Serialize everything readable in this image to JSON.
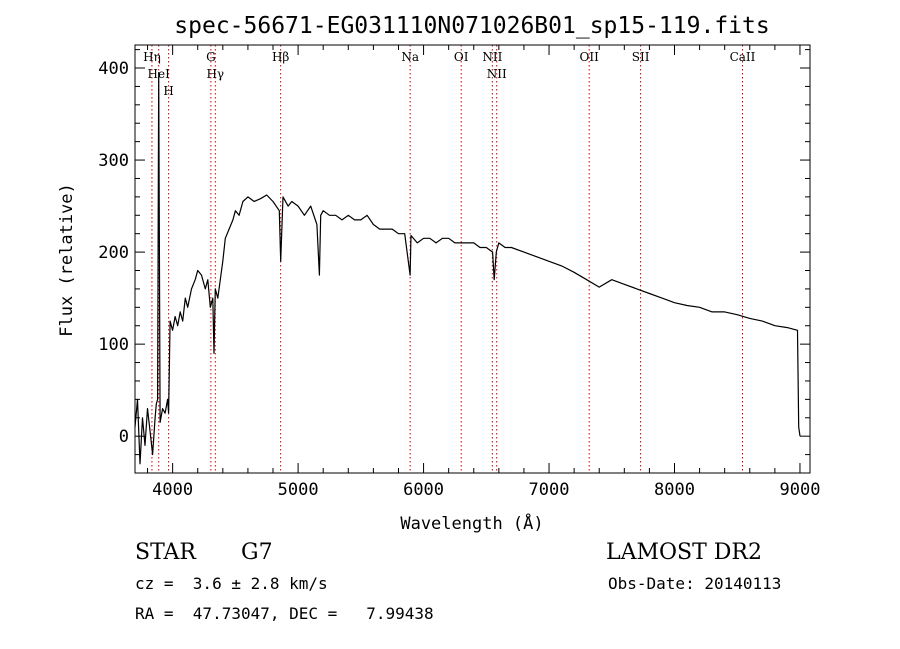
{
  "chart_data": {
    "type": "line",
    "title": "spec-56671-EG031110N071026B01_sp15-119.fits",
    "xlabel": "Wavelength (Å)",
    "ylabel": "Flux (relative)",
    "xlim": [
      3700,
      9080
    ],
    "ylim": [
      -40,
      425
    ],
    "x_ticks": [
      4000,
      5000,
      6000,
      7000,
      8000,
      9000
    ],
    "y_ticks": [
      0,
      100,
      200,
      300,
      400
    ],
    "grid": false,
    "series": [
      {
        "x": [
          3700,
          3720,
          3740,
          3760,
          3780,
          3800,
          3820,
          3840,
          3860,
          3870,
          3880,
          3889,
          3900,
          3920,
          3940,
          3960,
          3968,
          3980,
          4000,
          4020,
          4040,
          4060,
          4080,
          4101,
          4120,
          4150,
          4180,
          4200,
          4230,
          4260,
          4280,
          4300,
          4320,
          4330,
          4340,
          4360,
          4380,
          4400,
          4420,
          4450,
          4480,
          4500,
          4530,
          4560,
          4600,
          4650,
          4700,
          4750,
          4800,
          4850,
          4861,
          4880,
          4920,
          4950,
          5000,
          5050,
          5100,
          5150,
          5170,
          5180,
          5200,
          5250,
          5300,
          5350,
          5400,
          5450,
          5500,
          5550,
          5600,
          5650,
          5700,
          5750,
          5800,
          5850,
          5893,
          5900,
          5950,
          6000,
          6050,
          6100,
          6150,
          6200,
          6250,
          6300,
          6350,
          6400,
          6450,
          6500,
          6550,
          6563,
          6580,
          6600,
          6650,
          6700,
          6800,
          6900,
          7000,
          7100,
          7200,
          7300,
          7400,
          7500,
          7600,
          7700,
          7800,
          7900,
          8000,
          8100,
          8200,
          8300,
          8400,
          8500,
          8600,
          8700,
          8800,
          8900,
          8980,
          8990,
          9000
        ],
        "y": [
          10,
          40,
          -30,
          20,
          -10,
          30,
          5,
          -20,
          20,
          35,
          40,
          395,
          15,
          30,
          25,
          40,
          25,
          125,
          115,
          130,
          120,
          135,
          125,
          150,
          140,
          160,
          170,
          180,
          175,
          160,
          170,
          140,
          150,
          90,
          160,
          150,
          170,
          190,
          215,
          225,
          235,
          245,
          240,
          255,
          260,
          255,
          258,
          262,
          255,
          245,
          190,
          260,
          250,
          255,
          250,
          240,
          250,
          230,
          175,
          240,
          245,
          240,
          240,
          235,
          240,
          235,
          235,
          240,
          230,
          225,
          225,
          225,
          220,
          220,
          175,
          218,
          210,
          215,
          215,
          210,
          215,
          215,
          210,
          210,
          210,
          210,
          205,
          205,
          200,
          170,
          200,
          210,
          205,
          205,
          200,
          195,
          190,
          185,
          178,
          170,
          162,
          170,
          165,
          160,
          155,
          150,
          145,
          142,
          140,
          135,
          135,
          132,
          128,
          125,
          120,
          118,
          115,
          10,
          0
        ]
      }
    ],
    "reference_lines": [
      {
        "label": "Hη",
        "x": 3835
      },
      {
        "label": "HeI",
        "x": 3889
      },
      {
        "label": "H",
        "x": 3968
      },
      {
        "label": "Hγ",
        "x": 4340
      },
      {
        "label": "G",
        "x": 4305
      },
      {
        "label": "Hβ",
        "x": 4861
      },
      {
        "label": "Na",
        "x": 5893
      },
      {
        "label": "OI",
        "x": 6300
      },
      {
        "label": "NII",
        "x": 6548
      },
      {
        "label": "NII",
        "x": 6583
      },
      {
        "label": "OII",
        "x": 7320
      },
      {
        "label": "SII",
        "x": 7730
      },
      {
        "label": "CaII",
        "x": 8542
      }
    ]
  },
  "info": {
    "class": "STAR",
    "subclass": "G7",
    "survey": "LAMOST DR2",
    "redshift": "cz =  3.6 ± 2.8 km/s",
    "obs_date": "Obs-Date: 20140113",
    "coords": "RA =  47.73047, DEC =   7.99438"
  },
  "colors": {
    "spectrum": "#000000",
    "reference_line": "#cc0000"
  }
}
